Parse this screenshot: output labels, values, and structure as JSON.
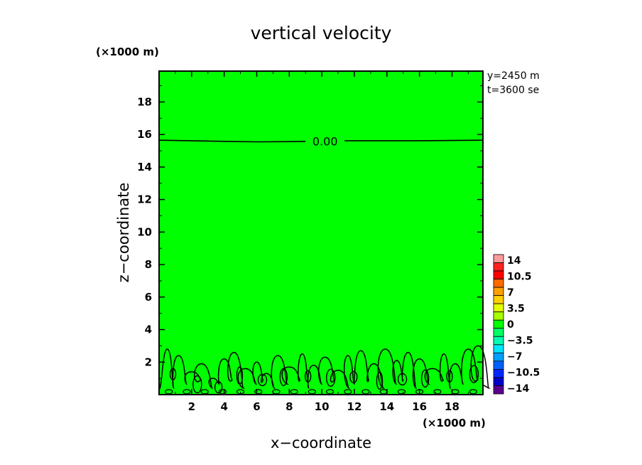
{
  "chart_data": {
    "type": "heatmap",
    "title": "vertical velocity",
    "xlabel": "x−coordinate",
    "ylabel": "z−coordinate",
    "x_unit": "(×1000 m)",
    "z_unit": "(×1000 m)",
    "xlim": [
      0,
      19.9
    ],
    "ylim": [
      0,
      19.9
    ],
    "x_ticks": [
      2,
      4,
      6,
      8,
      10,
      12,
      14,
      16,
      18
    ],
    "y_ticks": [
      2,
      4,
      6,
      8,
      10,
      12,
      14,
      16,
      18
    ],
    "annotations": [
      "y=2450 m",
      "t=3600 se"
    ],
    "field_color": "#00ff00",
    "contour_label": "0.00",
    "contour_zero_line": {
      "x": [
        0,
        2,
        4,
        6,
        8,
        10,
        12,
        14,
        16,
        18,
        19.9
      ],
      "z": [
        15.65,
        15.62,
        15.58,
        15.55,
        15.56,
        15.6,
        15.62,
        15.62,
        15.62,
        15.63,
        15.65
      ]
    },
    "boundary_layer_peaks": {
      "x": [
        0.5,
        1.2,
        2.0,
        2.6,
        3.3,
        4.0,
        4.6,
        5.3,
        6.0,
        6.6,
        7.3,
        8.0,
        8.8,
        9.5,
        10.2,
        11.0,
        11.6,
        12.4,
        13.2,
        13.9,
        14.6,
        15.3,
        16.0,
        16.8,
        17.5,
        18.2,
        19.0,
        19.6
      ],
      "z": [
        2.8,
        2.4,
        1.4,
        1.9,
        1.0,
        2.2,
        2.6,
        1.6,
        2.0,
        1.3,
        2.4,
        1.7,
        2.5,
        1.8,
        2.3,
        1.5,
        2.4,
        2.7,
        1.9,
        2.8,
        2.1,
        2.6,
        2.2,
        1.6,
        2.5,
        1.9,
        2.8,
        3.0
      ]
    },
    "colorbar": {
      "levels": [
        "14",
        "10.5",
        "7",
        "3.5",
        "0",
        "−3.5",
        "−7",
        "−10.5",
        "−14"
      ],
      "colors": [
        "#ff9a9a",
        "#ff2020",
        "#ff0000",
        "#ff6a00",
        "#ff9f00",
        "#ffd000",
        "#e6ff00",
        "#a8ff00",
        "#00ff00",
        "#00ff66",
        "#00ffb0",
        "#00e6ff",
        "#00a0ff",
        "#0060ff",
        "#0028ff",
        "#0000c8",
        "#5a008c"
      ]
    }
  }
}
